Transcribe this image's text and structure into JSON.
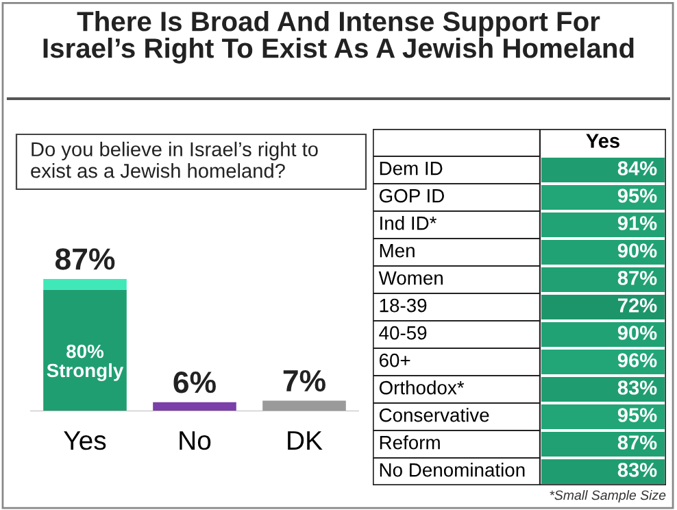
{
  "chart_data": [
    {
      "type": "bar",
      "title": "There Is Broad And Intense Support For\nIsrael’s Right To Exist As A Jewish Homeland",
      "subtitle": "Do you believe in Israel’s right to\nexist as a Jewish homeland?",
      "categories": [
        "Yes",
        "No",
        "DK"
      ],
      "stacked": true,
      "tick_labels": "x",
      "grid": false,
      "legend": false,
      "series": [
        {
          "colors": [
            "#1f9e72",
            "#7a3fa8",
            "#9a9a9a"
          ],
          "values": [
            80,
            6,
            7
          ],
          "value_labels": [
            "80%\nStrongly",
            null,
            null
          ]
        },
        {
          "color": "#40e8b8",
          "values": [
            7,
            null,
            null
          ]
        }
      ],
      "totals": [
        "87%",
        "6%",
        "7%"
      ]
    },
    {
      "type": "heatmap",
      "categories": [
        "Yes"
      ],
      "y_categories": [
        "Dem ID",
        "GOP ID",
        "Ind ID*",
        "Men",
        "Women",
        "18-39",
        "40-59",
        "60+",
        "Orthodox*",
        "Conservative",
        "Reform",
        "No Denomination"
      ],
      "cells": [
        [
          84
        ],
        [
          95
        ],
        [
          91
        ],
        [
          90
        ],
        [
          87
        ],
        [
          72
        ],
        [
          90
        ],
        [
          96
        ],
        [
          83
        ],
        [
          95
        ],
        [
          87
        ],
        [
          83
        ]
      ],
      "cell_labels": [
        [
          "84%"
        ],
        [
          "95%"
        ],
        [
          "91%"
        ],
        [
          "90%"
        ],
        [
          "87%"
        ],
        [
          "72%"
        ],
        [
          "90%"
        ],
        [
          "96%"
        ],
        [
          "83%"
        ],
        [
          "95%"
        ],
        [
          "87%"
        ],
        [
          "83%"
        ]
      ],
      "annotations": [
        "*Small Sample Size"
      ]
    }
  ]
}
